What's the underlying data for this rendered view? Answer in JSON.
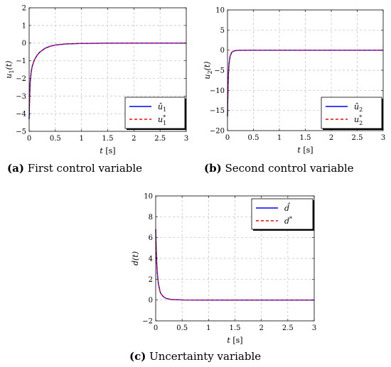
{
  "captions": [
    {
      "letter": "(a)",
      "text": " First control variable"
    },
    {
      "letter": "(b)",
      "text": " Second control variable"
    },
    {
      "letter": "(c)",
      "text": " Uncertainty variable"
    }
  ],
  "chart_data": [
    {
      "type": "line",
      "xlabel": "t [s]",
      "ylabel": "u1(t)",
      "xlim": [
        0,
        3
      ],
      "ylim": [
        -5,
        2
      ],
      "xticks": [
        0,
        0.5,
        1,
        1.5,
        2,
        2.5,
        3
      ],
      "xticklabels": [
        "0",
        "0.5",
        "1",
        "1.5",
        "2",
        "2.5",
        "3"
      ],
      "yticks": [
        -5,
        -4,
        -3,
        -2,
        -1,
        0,
        1,
        2
      ],
      "yticklabels": [
        "−5",
        "−4",
        "−3",
        "−2",
        "−1",
        "0",
        "1",
        "2"
      ],
      "grid": true,
      "legend_position": "bottom-right",
      "series": [
        {
          "name": "û1",
          "color": "#0000ff",
          "dash": "solid",
          "x": [
            0,
            0.01,
            0.02,
            0.04,
            0.06,
            0.1,
            0.15,
            0.2,
            0.3,
            0.4,
            0.5,
            0.7,
            1.0,
            1.5,
            2.0,
            2.5,
            3.0
          ],
          "y": [
            -4.3,
            -3.0,
            -2.2,
            -1.6,
            -1.3,
            -0.95,
            -0.7,
            -0.52,
            -0.3,
            -0.18,
            -0.11,
            -0.05,
            -0.02,
            -0.005,
            0,
            0,
            0
          ]
        },
        {
          "name": "u1*",
          "color": "#ff0000",
          "dash": "dashed",
          "x": [
            0,
            0.01,
            0.02,
            0.04,
            0.06,
            0.1,
            0.15,
            0.2,
            0.3,
            0.4,
            0.5,
            0.7,
            1.0,
            1.5,
            2.0,
            2.5,
            3.0
          ],
          "y": [
            -4.3,
            -3.0,
            -2.2,
            -1.6,
            -1.3,
            -0.95,
            -0.7,
            -0.52,
            -0.3,
            -0.18,
            -0.11,
            -0.05,
            -0.02,
            -0.005,
            0,
            0,
            0
          ]
        }
      ]
    },
    {
      "type": "line",
      "xlabel": "t [s]",
      "ylabel": "u2(t)",
      "xlim": [
        0,
        3
      ],
      "ylim": [
        -20,
        10
      ],
      "xticks": [
        0,
        0.5,
        1,
        1.5,
        2,
        2.5,
        3
      ],
      "xticklabels": [
        "0",
        "0.5",
        "1",
        "1.5",
        "2",
        "2.5",
        "3"
      ],
      "yticks": [
        -20,
        -15,
        -10,
        -5,
        0,
        5,
        10
      ],
      "yticklabels": [
        "−20",
        "−15",
        "−10",
        "−5",
        "0",
        "5",
        "10"
      ],
      "grid": true,
      "legend_position": "bottom-right",
      "series": [
        {
          "name": "û2",
          "color": "#0000ff",
          "dash": "solid",
          "x": [
            0,
            0.01,
            0.02,
            0.03,
            0.05,
            0.08,
            0.1,
            0.15,
            0.2,
            0.3,
            0.5,
            1.0,
            2.0,
            3.0
          ],
          "y": [
            -16.5,
            -9.5,
            -5.5,
            -3.3,
            -1.5,
            -0.6,
            -0.35,
            -0.12,
            -0.05,
            -0.02,
            0,
            0,
            0,
            0
          ]
        },
        {
          "name": "u2*",
          "color": "#ff0000",
          "dash": "dashed",
          "x": [
            0,
            0.01,
            0.02,
            0.03,
            0.05,
            0.08,
            0.1,
            0.15,
            0.2,
            0.3,
            0.5,
            1.0,
            2.0,
            3.0
          ],
          "y": [
            -16.5,
            -9.5,
            -5.5,
            -3.3,
            -1.5,
            -0.6,
            -0.35,
            -0.12,
            -0.05,
            -0.02,
            0,
            0,
            0,
            0
          ]
        }
      ]
    },
    {
      "type": "line",
      "xlabel": "t [s]",
      "ylabel": "d(t)",
      "xlim": [
        0,
        3
      ],
      "ylim": [
        -2,
        10
      ],
      "xticks": [
        0,
        0.5,
        1,
        1.5,
        2,
        2.5,
        3
      ],
      "xticklabels": [
        "0",
        "0.5",
        "1",
        "1.5",
        "2",
        "2.5",
        "3"
      ],
      "yticks": [
        -2,
        0,
        2,
        4,
        6,
        8,
        10
      ],
      "yticklabels": [
        "−2",
        "0",
        "2",
        "4",
        "6",
        "8",
        "10"
      ],
      "grid": true,
      "legend_position": "top-right",
      "series": [
        {
          "name": "d̂",
          "color": "#0000ff",
          "dash": "solid",
          "x": [
            0,
            0.01,
            0.02,
            0.03,
            0.05,
            0.08,
            0.1,
            0.15,
            0.2,
            0.3,
            0.5,
            1.0,
            2.0,
            3.0
          ],
          "y": [
            6.8,
            4.9,
            3.5,
            2.6,
            1.6,
            0.85,
            0.6,
            0.3,
            0.15,
            0.05,
            0.01,
            0,
            0,
            0
          ]
        },
        {
          "name": "d*",
          "color": "#ff0000",
          "dash": "dashed",
          "x": [
            0,
            0.01,
            0.02,
            0.03,
            0.05,
            0.08,
            0.1,
            0.15,
            0.2,
            0.3,
            0.5,
            1.0,
            2.0,
            3.0
          ],
          "y": [
            6.8,
            4.9,
            3.5,
            2.6,
            1.6,
            0.85,
            0.6,
            0.3,
            0.15,
            0.05,
            0.01,
            0,
            0,
            0
          ]
        }
      ]
    }
  ]
}
